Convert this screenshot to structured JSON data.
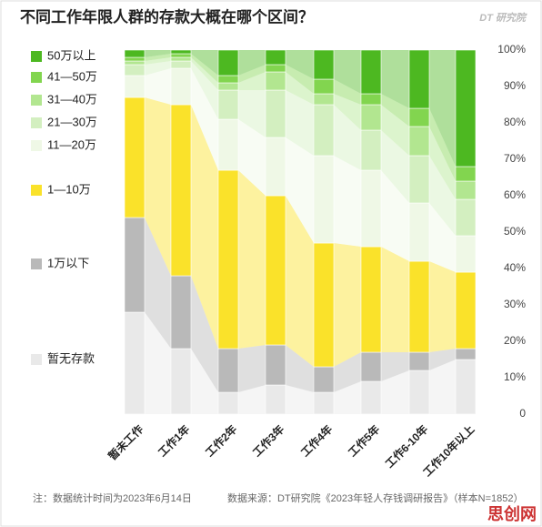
{
  "chart_data": {
    "type": "stacked_bar_100",
    "title": "不同工作年限人群的存款大概在哪个区间？",
    "brand": "DT 研究院",
    "note": "注：数据统计时间为2023年6月14日",
    "source": "数据来源：DT研究院《2023年轻人存钱调研报告》（样本N=1852）",
    "watermark": "思创网",
    "categories": [
      "暂未工作",
      "工作1年",
      "工作2年",
      "工作3年",
      "工作4年",
      "工作5年",
      "工作6-10年",
      "工作10年以上"
    ],
    "series": [
      {
        "name": "暂无存款",
        "color": "#e9e9e9",
        "values": [
          28,
          18,
          6,
          8,
          6,
          9,
          12,
          15
        ]
      },
      {
        "name": "1万以下",
        "color": "#b9b9b9",
        "values": [
          26,
          20,
          12,
          11,
          7,
          8,
          5,
          3
        ]
      },
      {
        "name": "1—10万",
        "color": "#fae22a",
        "values": [
          33,
          47,
          49,
          41,
          34,
          29,
          25,
          21
        ]
      },
      {
        "name": "11—20万",
        "color": "#eff8e6",
        "values": [
          6,
          10,
          14,
          16,
          24,
          21,
          16,
          10
        ]
      },
      {
        "name": "21—30万",
        "color": "#d3efc0",
        "values": [
          3,
          2,
          8,
          13,
          14,
          11,
          13,
          10
        ]
      },
      {
        "name": "31—40万",
        "color": "#b2e690",
        "values": [
          1,
          1,
          2,
          5,
          3,
          7,
          8,
          5
        ]
      },
      {
        "name": "41—50万",
        "color": "#82d54f",
        "values": [
          1,
          1,
          2,
          2,
          4,
          3,
          5,
          4
        ]
      },
      {
        "name": "50万以上",
        "color": "#4db821",
        "values": [
          2,
          1,
          7,
          4,
          8,
          12,
          16,
          32
        ]
      }
    ],
    "ylim": [
      0,
      100
    ],
    "yticks": [
      {
        "value": 0,
        "label": "0"
      },
      {
        "value": 10,
        "label": "10%"
      },
      {
        "value": 20,
        "label": "20%"
      },
      {
        "value": 30,
        "label": "30%"
      },
      {
        "value": 40,
        "label": "40%"
      },
      {
        "value": 50,
        "label": "50%"
      },
      {
        "value": 60,
        "label": "60%"
      },
      {
        "value": 70,
        "label": "70%"
      },
      {
        "value": 80,
        "label": "80%"
      },
      {
        "value": 90,
        "label": "90%"
      },
      {
        "value": 100,
        "label": "100%"
      }
    ]
  }
}
